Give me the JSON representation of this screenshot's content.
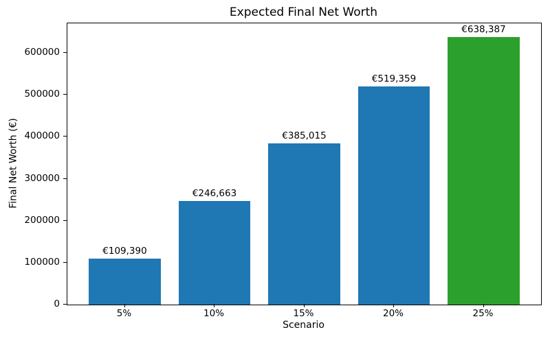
{
  "figure": {
    "background": "#ffffff"
  },
  "chart_data": {
    "type": "bar",
    "title": "Expected Final Net Worth",
    "xlabel": "Scenario",
    "ylabel": "Final Net Worth (€)",
    "categories": [
      "5%",
      "10%",
      "15%",
      "20%",
      "25%"
    ],
    "values": [
      109390,
      246663,
      385015,
      519359,
      638387
    ],
    "bar_labels": [
      "€109,390",
      "€246,663",
      "€385,015",
      "€519,359",
      "€638,387"
    ],
    "bar_colors": [
      "#1f77b4",
      "#1f77b4",
      "#1f77b4",
      "#1f77b4",
      "#2ca02c"
    ],
    "base_color": "#1f77b4",
    "highlight_color": "#2ca02c",
    "yticks": [
      0,
      100000,
      200000,
      300000,
      400000,
      500000,
      600000
    ],
    "ytick_labels": [
      "0",
      "100000",
      "200000",
      "300000",
      "400000",
      "500000",
      "600000"
    ],
    "xlim": [
      -0.64,
      4.64
    ],
    "ylim": [
      0,
      670306
    ],
    "bar_width": 0.8,
    "grid": false,
    "legend": null,
    "text_color": "#000000",
    "axis_color": "#000000"
  }
}
